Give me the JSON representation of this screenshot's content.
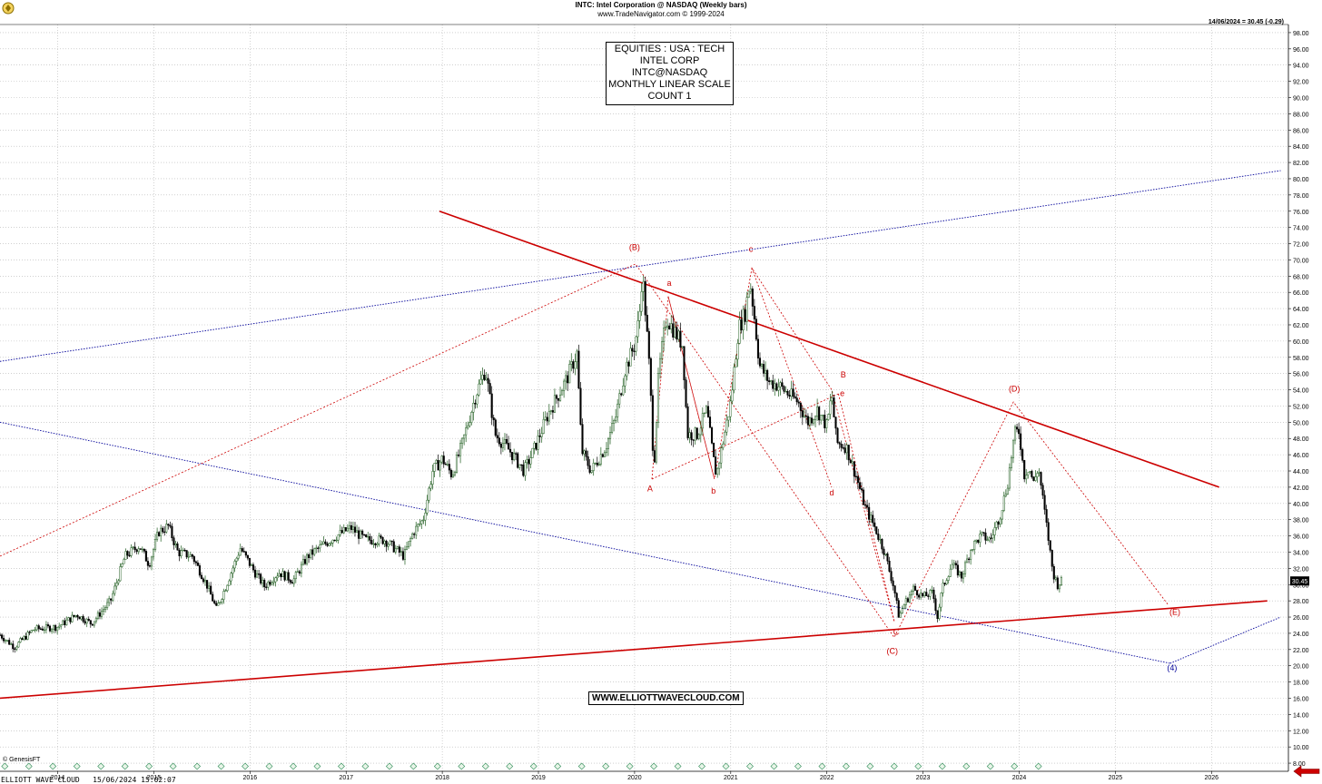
{
  "header": {
    "title": "INTC:  Intel Corporation @ NASDAQ  (Weekly bars)",
    "copyright": "www.TradeNavigator.com © 1999-2024",
    "last_quote": "14/06/2024 = 30.45 (-0.29)"
  },
  "info_box": {
    "lines": [
      "EQUITIES : USA : TECH",
      "INTEL CORP",
      "INTC@NASDAQ",
      "MONTHLY LINEAR SCALE",
      "COUNT 1"
    ]
  },
  "website": "WWW.ELLIOTTWAVECLOUD.COM",
  "footer": {
    "genesis": "© GenesisFT",
    "left": "ELLIOTT WAVE CLOUD   15/06/2024 15:02:07"
  },
  "icons": {
    "logo": "logo-icon",
    "back": "back-arrow-icon",
    "event": "event-marker-icon"
  },
  "colors": {
    "up_bar": "#1e5c1e",
    "down_bar": "#000000",
    "red_line": "#cc0000",
    "blue_line": "#000099",
    "label_red": "#cc0000",
    "label_blue": "#000099"
  },
  "chart_data": {
    "type": "candlestick",
    "title": "INTC: Intel Corporation @ NASDAQ (Weekly bars)",
    "x_range": [
      2013.4,
      2026.8
    ],
    "ylim": [
      7,
      99
    ],
    "y_ticks": [
      8,
      10,
      12,
      14,
      16,
      18,
      20,
      22,
      24,
      26,
      28,
      30,
      32,
      34,
      36,
      38,
      40,
      42,
      44,
      46,
      48,
      50,
      52,
      54,
      56,
      58,
      60,
      62,
      64,
      66,
      68,
      70,
      72,
      74,
      76,
      78,
      80,
      82,
      84,
      86,
      88,
      90,
      92,
      94,
      96,
      98
    ],
    "x_ticks": [
      "2014",
      "2015",
      "2016",
      "2017",
      "2018",
      "2019",
      "2020",
      "2021",
      "2022",
      "2023",
      "2024",
      "2025",
      "2026"
    ],
    "last_price": "30.45",
    "grid": true,
    "price_path": [
      [
        2013.4,
        23.8
      ],
      [
        2013.55,
        22.3
      ],
      [
        2013.75,
        24.5
      ],
      [
        2014.0,
        24.8
      ],
      [
        2014.2,
        26.3
      ],
      [
        2014.35,
        25.2
      ],
      [
        2014.55,
        28.0
      ],
      [
        2014.7,
        33.5
      ],
      [
        2014.85,
        34.8
      ],
      [
        2014.95,
        32.5
      ],
      [
        2015.05,
        36.5
      ],
      [
        2015.15,
        37.2
      ],
      [
        2015.25,
        34.0
      ],
      [
        2015.4,
        33.5
      ],
      [
        2015.55,
        30.0
      ],
      [
        2015.65,
        27.0
      ],
      [
        2015.75,
        29.8
      ],
      [
        2015.9,
        34.5
      ],
      [
        2016.05,
        31.5
      ],
      [
        2016.15,
        29.8
      ],
      [
        2016.3,
        31.5
      ],
      [
        2016.45,
        30.5
      ],
      [
        2016.6,
        33.5
      ],
      [
        2016.75,
        34.8
      ],
      [
        2016.9,
        36.0
      ],
      [
        2017.05,
        37.0
      ],
      [
        2017.2,
        35.5
      ],
      [
        2017.4,
        35.5
      ],
      [
        2017.6,
        33.5
      ],
      [
        2017.7,
        36.5
      ],
      [
        2017.8,
        38.0
      ],
      [
        2017.9,
        44.0
      ],
      [
        2018.0,
        45.5
      ],
      [
        2018.1,
        43.5
      ],
      [
        2018.2,
        47.0
      ],
      [
        2018.35,
        53.5
      ],
      [
        2018.45,
        56.5
      ],
      [
        2018.55,
        48.5
      ],
      [
        2018.7,
        46.5
      ],
      [
        2018.85,
        44.0
      ],
      [
        2018.95,
        46.5
      ],
      [
        2019.1,
        51.0
      ],
      [
        2019.3,
        55.5
      ],
      [
        2019.4,
        58.5
      ],
      [
        2019.45,
        46.5
      ],
      [
        2019.55,
        44.0
      ],
      [
        2019.7,
        47.0
      ],
      [
        2019.8,
        50.5
      ],
      [
        2019.9,
        56.5
      ],
      [
        2020.0,
        59.5
      ],
      [
        2020.05,
        63.0
      ],
      [
        2020.08,
        68.5
      ],
      [
        2020.12,
        62.5
      ],
      [
        2020.16,
        55.5
      ],
      [
        2020.2,
        44.0
      ],
      [
        2020.25,
        56.0
      ],
      [
        2020.33,
        63.0
      ],
      [
        2020.4,
        61.5
      ],
      [
        2020.5,
        59.5
      ],
      [
        2020.55,
        48.5
      ],
      [
        2020.65,
        48.5
      ],
      [
        2020.75,
        51.5
      ],
      [
        2020.82,
        45.5
      ],
      [
        2020.85,
        43.5
      ],
      [
        2020.9,
        46.5
      ],
      [
        2021.0,
        52.5
      ],
      [
        2021.08,
        61.5
      ],
      [
        2021.15,
        63.5
      ],
      [
        2021.2,
        67.5
      ],
      [
        2021.25,
        62.5
      ],
      [
        2021.3,
        57.0
      ],
      [
        2021.4,
        55.0
      ],
      [
        2021.5,
        54.5
      ],
      [
        2021.6,
        53.5
      ],
      [
        2021.7,
        52.5
      ],
      [
        2021.8,
        50.0
      ],
      [
        2021.9,
        51.5
      ],
      [
        2022.0,
        49.5
      ],
      [
        2022.05,
        53.5
      ],
      [
        2022.1,
        47.5
      ],
      [
        2022.2,
        47.0
      ],
      [
        2022.3,
        43.5
      ],
      [
        2022.4,
        39.5
      ],
      [
        2022.5,
        37.0
      ],
      [
        2022.6,
        34.0
      ],
      [
        2022.7,
        29.5
      ],
      [
        2022.75,
        26.0
      ],
      [
        2022.8,
        27.5
      ],
      [
        2022.9,
        29.5
      ],
      [
        2023.0,
        28.5
      ],
      [
        2023.1,
        29.0
      ],
      [
        2023.15,
        26.0
      ],
      [
        2023.2,
        29.5
      ],
      [
        2023.3,
        32.5
      ],
      [
        2023.4,
        31.0
      ],
      [
        2023.5,
        34.5
      ],
      [
        2023.6,
        36.0
      ],
      [
        2023.7,
        35.5
      ],
      [
        2023.8,
        38.5
      ],
      [
        2023.88,
        42.5
      ],
      [
        2023.95,
        48.5
      ],
      [
        2024.0,
        49.0
      ],
      [
        2024.05,
        43.5
      ],
      [
        2024.1,
        44.5
      ],
      [
        2024.15,
        42.5
      ],
      [
        2024.2,
        44.5
      ],
      [
        2024.27,
        38.5
      ],
      [
        2024.3,
        36.0
      ],
      [
        2024.35,
        31.5
      ],
      [
        2024.4,
        30.0
      ],
      [
        2024.45,
        30.5
      ]
    ],
    "trendlines": [
      {
        "color": "red",
        "style": "solid",
        "points": [
          [
            2017.97,
            76.0
          ],
          [
            2026.08,
            42.0
          ]
        ]
      },
      {
        "color": "red",
        "style": "solid",
        "points": [
          [
            2013.4,
            16.0
          ],
          [
            2026.58,
            28.0
          ]
        ]
      },
      {
        "color": "blue",
        "style": "dotted",
        "points": [
          [
            2013.4,
            57.5
          ],
          [
            2026.72,
            81.0
          ]
        ]
      },
      {
        "color": "blue",
        "style": "dotted",
        "points": [
          [
            2013.4,
            50.0
          ],
          [
            2025.57,
            20.3
          ]
        ]
      },
      {
        "color": "blue",
        "style": "dotted",
        "points": [
          [
            2025.57,
            20.3
          ],
          [
            2026.72,
            26.0
          ]
        ]
      }
    ],
    "wave_lines": [
      {
        "color": "red",
        "points": [
          [
            2013.4,
            33.5
          ],
          [
            2020.01,
            69.5
          ],
          [
            2022.7,
            23.5
          ],
          [
            2023.94,
            52.5
          ],
          [
            2025.55,
            27.5
          ]
        ]
      },
      {
        "color": "red",
        "points": [
          [
            2020.18,
            43.0
          ],
          [
            2020.35,
            65.5
          ],
          [
            2020.83,
            43.0
          ],
          [
            2021.22,
            69.0
          ],
          [
            2022.05,
            54.0
          ],
          [
            2022.7,
            25.5
          ]
        ]
      },
      {
        "color": "red",
        "points": [
          [
            2020.18,
            43.0
          ],
          [
            2022.12,
            53.5
          ]
        ]
      },
      {
        "color": "red",
        "points": [
          [
            2020.35,
            65.5
          ],
          [
            2020.83,
            43.0
          ]
        ]
      },
      {
        "color": "red",
        "points": [
          [
            2021.22,
            69.0
          ],
          [
            2022.05,
            42.0
          ]
        ]
      },
      {
        "color": "red",
        "points": [
          [
            2022.12,
            53.5
          ],
          [
            2022.7,
            25.5
          ]
        ]
      }
    ],
    "wave_labels": [
      {
        "text": "(B)",
        "x": 2020.0,
        "y": 71.2,
        "color": "red"
      },
      {
        "text": "a",
        "x": 2020.36,
        "y": 66.8,
        "color": "red"
      },
      {
        "text": "c",
        "x": 2021.21,
        "y": 71.0,
        "color": "red"
      },
      {
        "text": "B",
        "x": 2022.17,
        "y": 55.5,
        "color": "red"
      },
      {
        "text": "e",
        "x": 2022.16,
        "y": 53.2,
        "color": "red"
      },
      {
        "text": "(D)",
        "x": 2023.95,
        "y": 53.8,
        "color": "red"
      },
      {
        "text": "A",
        "x": 2020.16,
        "y": 41.5,
        "color": "red"
      },
      {
        "text": "b",
        "x": 2020.82,
        "y": 41.2,
        "color": "red"
      },
      {
        "text": "d",
        "x": 2022.05,
        "y": 41.0,
        "color": "red"
      },
      {
        "text": "C",
        "x": 2022.72,
        "y": 23.8,
        "color": "red"
      },
      {
        "text": "(C)",
        "x": 2022.68,
        "y": 21.5,
        "color": "red"
      },
      {
        "text": "(E)",
        "x": 2025.62,
        "y": 26.3,
        "color": "red"
      },
      {
        "text": "(4)",
        "x": 2025.59,
        "y": 19.4,
        "color": "blue"
      }
    ]
  }
}
